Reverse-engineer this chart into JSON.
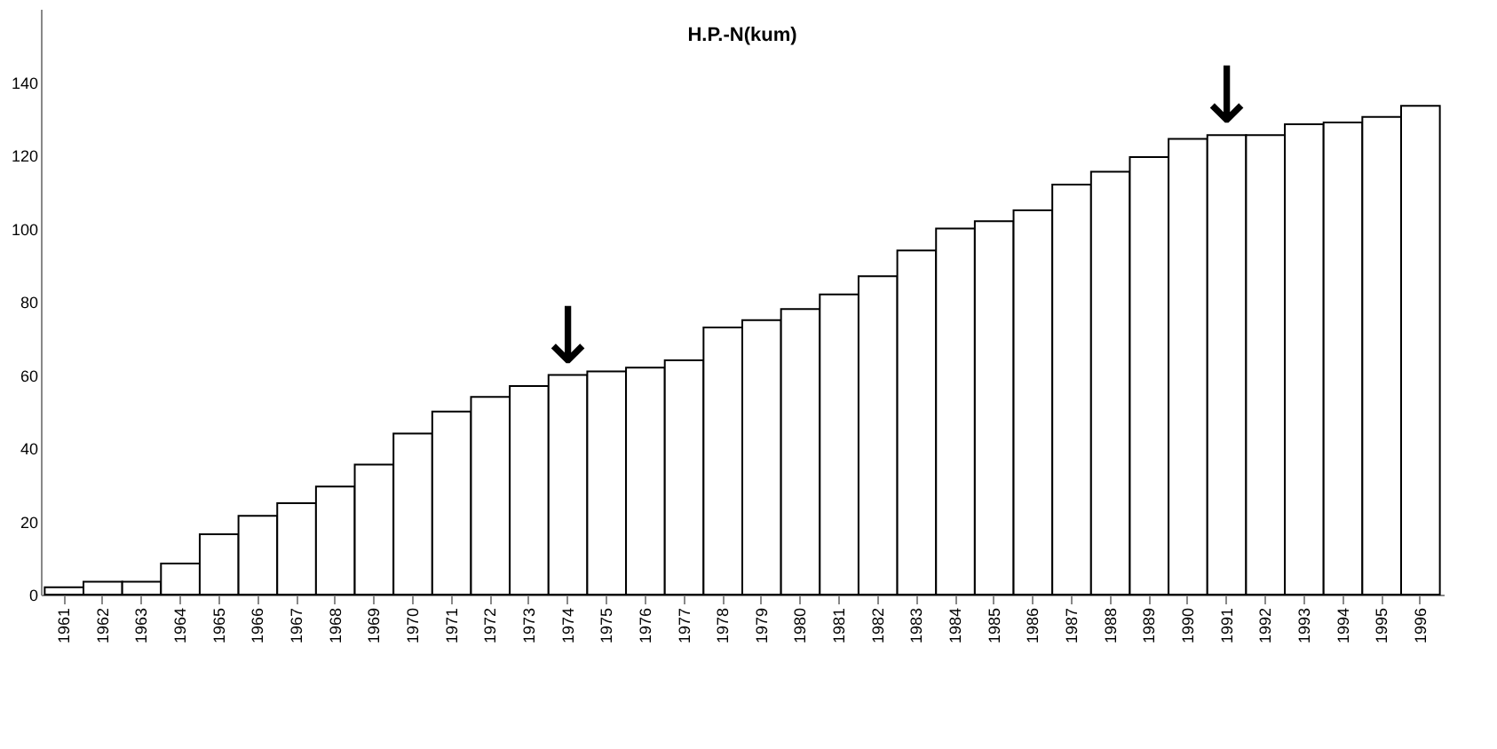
{
  "chart_data": {
    "type": "bar",
    "title": "H.P.-N(kum)",
    "categories": [
      "1961",
      "1962",
      "1963",
      "1964",
      "1965",
      "1966",
      "1967",
      "1968",
      "1969",
      "1970",
      "1971",
      "1972",
      "1973",
      "1974",
      "1975",
      "1976",
      "1977",
      "1978",
      "1979",
      "1980",
      "1981",
      "1982",
      "1983",
      "1984",
      "1985",
      "1986",
      "1987",
      "1988",
      "1989",
      "1990",
      "1991",
      "1992",
      "1993",
      "1994",
      "1995",
      "1996"
    ],
    "values": [
      2,
      3.5,
      3.5,
      8.5,
      16.5,
      21.5,
      25,
      29.5,
      35.5,
      44,
      50,
      54,
      57,
      60,
      61,
      62,
      64,
      73,
      75,
      78,
      82,
      87,
      94,
      100,
      102,
      105,
      112,
      115.5,
      119.5,
      124.5,
      125.5,
      125.5,
      128.5,
      129,
      130.5,
      133.5
    ],
    "color": "#ffffff",
    "ylim": [
      0,
      160
    ],
    "yticks": [
      0,
      20,
      40,
      60,
      80,
      100,
      120,
      140
    ],
    "grid": false,
    "annotations": [
      {
        "text": "↓",
        "x": "1974",
        "y": 60
      },
      {
        "text": "↓",
        "x": "1991",
        "y": 125.5
      }
    ]
  }
}
